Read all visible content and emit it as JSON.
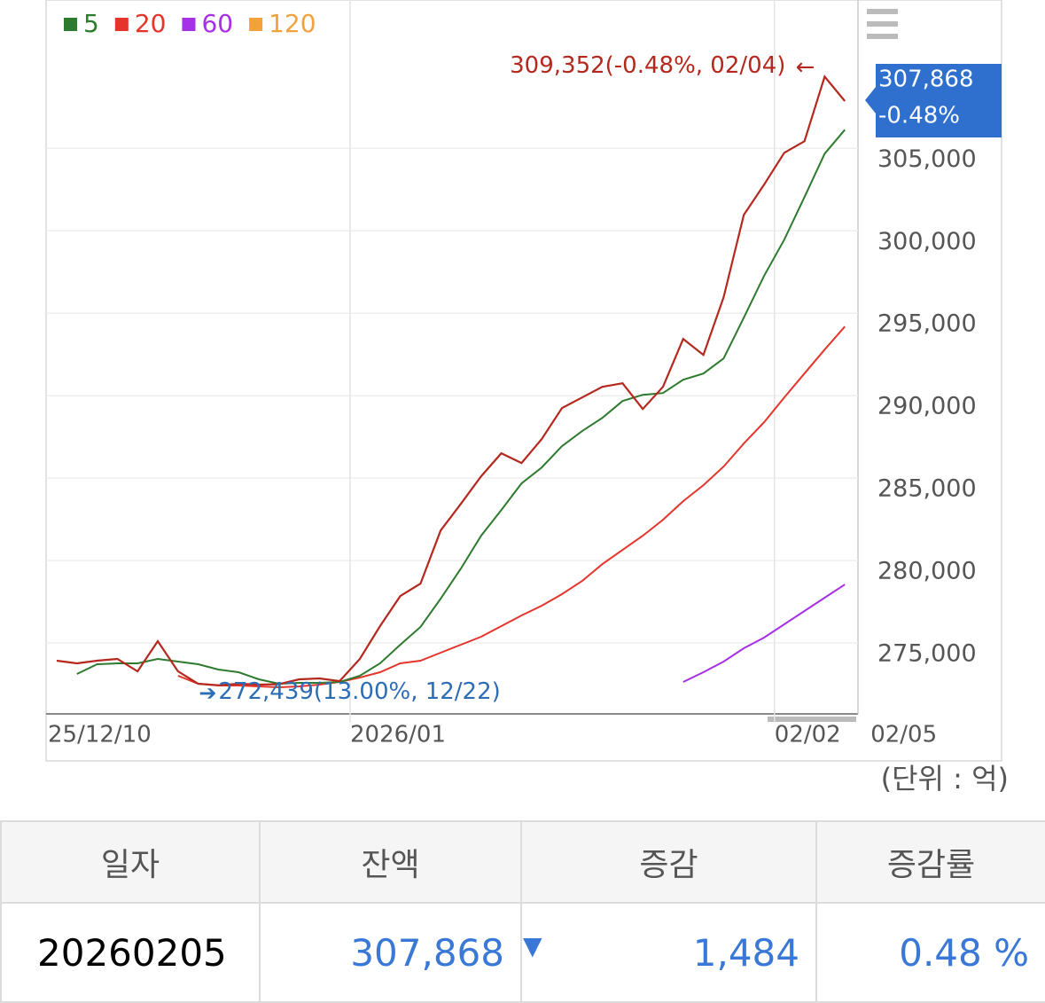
{
  "chart_data": {
    "type": "line",
    "categories": [
      "25/12/10",
      null,
      null,
      null,
      null,
      null,
      null,
      null,
      null,
      null,
      null,
      null,
      null,
      null,
      null,
      "2026/01",
      null,
      null,
      null,
      null,
      null,
      null,
      null,
      null,
      null,
      null,
      null,
      null,
      null,
      null,
      null,
      null,
      null,
      null,
      null,
      null,
      "02/02",
      null,
      null,
      "02/05"
    ],
    "balance": {
      "color": "#b5281e",
      "values": [
        273925,
        273765,
        273925,
        274034,
        273280,
        275109,
        273280,
        272529,
        272439,
        272529,
        272475,
        272500,
        272798,
        272852,
        272690,
        274034,
        276023,
        277851,
        278604,
        281829,
        283442,
        285109,
        286507,
        285915,
        287367,
        289248,
        289893,
        290539,
        290754,
        289195,
        290539,
        293442,
        292474,
        295968,
        300968,
        302796,
        304731,
        305430,
        309352,
        307868
      ]
    },
    "series": [
      {
        "name": "5",
        "color": "#2e7a2e",
        "values": [
          null,
          273120,
          273712,
          273765,
          273765,
          274034,
          273873,
          273712,
          273389,
          273228,
          272798,
          272529,
          272583,
          272583,
          272636,
          273013,
          273765,
          274894,
          275970,
          277690,
          279518,
          281507,
          283066,
          284679,
          285646,
          286937,
          287851,
          288657,
          289678,
          290055,
          290162,
          290969,
          291345,
          292259,
          294732,
          297259,
          299463,
          302043,
          304677,
          306129
        ]
      },
      {
        "name": "20",
        "color": "#e5352b",
        "values": [
          null,
          null,
          null,
          null,
          null,
          null,
          273013,
          272529,
          272421,
          272421,
          272367,
          272314,
          272367,
          272475,
          272636,
          272905,
          273228,
          273765,
          273925,
          274411,
          274894,
          275378,
          276023,
          276668,
          277260,
          277959,
          278765,
          279787,
          280647,
          281507,
          282475,
          283604,
          284571,
          285700,
          287098,
          288388,
          289893,
          291345,
          292796,
          294194
        ]
      },
      {
        "name": "60",
        "color": "#a630e6",
        "values": [
          null,
          null,
          null,
          null,
          null,
          null,
          null,
          null,
          null,
          null,
          null,
          null,
          null,
          null,
          null,
          null,
          null,
          null,
          null,
          null,
          null,
          null,
          null,
          null,
          null,
          null,
          null,
          null,
          null,
          null,
          null,
          272636,
          273228,
          273873,
          274679,
          275324,
          276131,
          276937,
          277744,
          278550
        ]
      },
      {
        "name": "120",
        "color": "#f3a23b",
        "values": [
          null,
          null,
          null,
          null,
          null,
          null,
          null,
          null,
          null,
          null,
          null,
          null,
          null,
          null,
          null,
          null,
          null,
          null,
          null,
          null,
          null,
          null,
          null,
          null,
          null,
          null,
          null,
          null,
          null,
          null,
          null,
          null,
          null,
          null,
          null,
          null,
          null,
          null,
          null,
          null
        ]
      }
    ],
    "ylim": [
      270700,
      314000
    ],
    "yticks": [
      {
        "value": 275000,
        "label": "275,000"
      },
      {
        "value": 280000,
        "label": "280,000"
      },
      {
        "value": 285000,
        "label": "285,000"
      },
      {
        "value": 290000,
        "label": "290,000"
      },
      {
        "value": 295000,
        "label": "295,000"
      },
      {
        "value": 300000,
        "label": "300,000"
      },
      {
        "value": 305000,
        "label": "305,000"
      }
    ],
    "grid": true,
    "annotations": {
      "max": "309,352(-0.48%, 02/04)",
      "min": "272,439(13.00%, 12/22)"
    },
    "callout": [
      "307,868",
      "-0.48%"
    ],
    "unit": "(단위 : 억)"
  },
  "table": {
    "headers": [
      "일자",
      "잔액",
      "증감",
      "증감률"
    ],
    "rows": [
      [
        "20260205",
        "307,868",
        "1,484",
        "0.48 %"
      ]
    ]
  }
}
